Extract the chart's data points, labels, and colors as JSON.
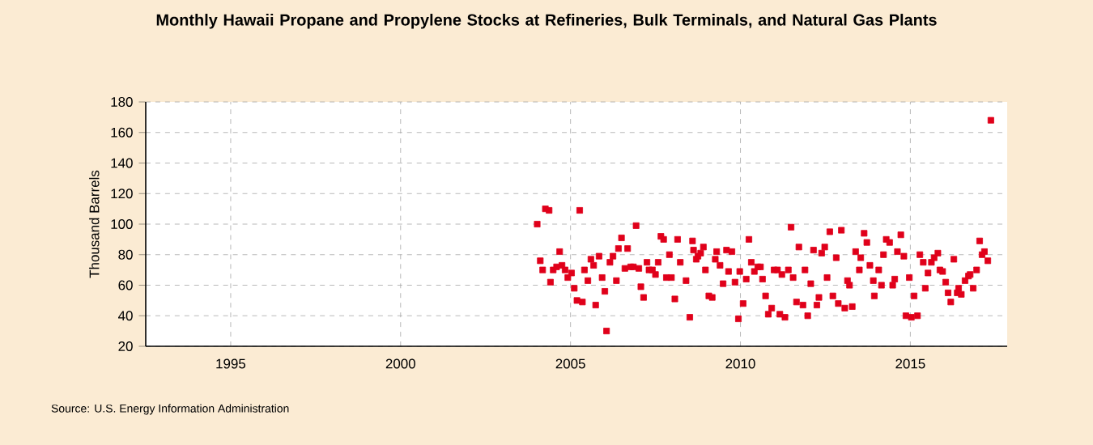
{
  "chart_data": {
    "type": "scatter",
    "title": "Monthly Hawaii Propane and Propylene Stocks at Refineries, Bulk Terminals, and Natural Gas Plants",
    "ylabel": "Thousand Barrels",
    "annotations": [
      "Source: U.S. Energy Information Administration"
    ],
    "x": [
      2004.02,
      2004.11,
      2004.18,
      2004.26,
      2004.37,
      2004.41,
      2004.49,
      2004.59,
      2004.68,
      2004.75,
      2004.84,
      2004.92,
      2005.03,
      2005.11,
      2005.19,
      2005.27,
      2005.35,
      2005.41,
      2005.51,
      2005.6,
      2005.68,
      2005.74,
      2005.84,
      2005.93,
      2006.01,
      2006.06,
      2006.16,
      2006.25,
      2006.35,
      2006.41,
      2006.5,
      2006.6,
      2006.68,
      2006.77,
      2006.85,
      2006.93,
      2007.01,
      2007.07,
      2007.15,
      2007.25,
      2007.31,
      2007.41,
      2007.5,
      2007.58,
      2007.66,
      2007.74,
      2007.82,
      2007.91,
      2007.97,
      2008.07,
      2008.15,
      2008.23,
      2008.4,
      2008.51,
      2008.59,
      2008.62,
      2008.7,
      2008.75,
      2008.83,
      2008.91,
      2008.97,
      2009.07,
      2009.17,
      2009.26,
      2009.3,
      2009.4,
      2009.49,
      2009.59,
      2009.65,
      2009.75,
      2009.84,
      2009.94,
      2009.98,
      2010.08,
      2010.17,
      2010.25,
      2010.32,
      2010.41,
      2010.51,
      2010.59,
      2010.65,
      2010.74,
      2010.82,
      2010.92,
      2010.99,
      2011.09,
      2011.16,
      2011.22,
      2011.31,
      2011.41,
      2011.49,
      2011.55,
      2011.65,
      2011.72,
      2011.84,
      2011.9,
      2011.98,
      2012.07,
      2012.15,
      2012.25,
      2012.31,
      2012.39,
      2012.48,
      2012.55,
      2012.63,
      2012.72,
      2012.82,
      2012.88,
      2012.97,
      2013.07,
      2013.15,
      2013.21,
      2013.29,
      2013.39,
      2013.5,
      2013.54,
      2013.64,
      2013.72,
      2013.81,
      2013.91,
      2013.94,
      2014.07,
      2014.15,
      2014.21,
      2014.29,
      2014.39,
      2014.48,
      2014.54,
      2014.62,
      2014.72,
      2014.81,
      2014.87,
      2014.97,
      2015.03,
      2015.11,
      2015.21,
      2015.28,
      2015.38,
      2015.44,
      2015.52,
      2015.62,
      2015.7,
      2015.81,
      2015.87,
      2015.95,
      2016.04,
      2016.11,
      2016.19,
      2016.28,
      2016.38,
      2016.42,
      2016.5,
      2016.61,
      2016.71,
      2016.76,
      2016.85,
      2016.95,
      2017.04,
      2017.11,
      2017.18,
      2017.28,
      2017.37
    ],
    "values": [
      100,
      76,
      70,
      110,
      109,
      62,
      70,
      72,
      82,
      73,
      70,
      65,
      68,
      58,
      50,
      109,
      49,
      70,
      63,
      77,
      73,
      47,
      79,
      65,
      56,
      30,
      75,
      79,
      63,
      84,
      91,
      71,
      84,
      72,
      72,
      99,
      71,
      59,
      52,
      75,
      70,
      70,
      67,
      75,
      92,
      90,
      65,
      80,
      65,
      51,
      90,
      75,
      63,
      39,
      89,
      83,
      77,
      79,
      81,
      85,
      70,
      53,
      52,
      77,
      82,
      73,
      61,
      83,
      69,
      82,
      62,
      38,
      69,
      48,
      64,
      90,
      75,
      69,
      72,
      72,
      64,
      53,
      41,
      45,
      70,
      70,
      41,
      67,
      39,
      70,
      98,
      65,
      49,
      85,
      47,
      70,
      40,
      61,
      83,
      47,
      52,
      81,
      85,
      65,
      95,
      53,
      78,
      48,
      96,
      45,
      63,
      60,
      46,
      82,
      70,
      78,
      94,
      88,
      73,
      63,
      53,
      70,
      60,
      80,
      90,
      88,
      60,
      64,
      82,
      93,
      79,
      40,
      65,
      39,
      53,
      40,
      80,
      75,
      58,
      68,
      75,
      78,
      81,
      70,
      69,
      62,
      55,
      49,
      77,
      55,
      58,
      54,
      63,
      66,
      67,
      58,
      70,
      89,
      80,
      82,
      76,
      168
    ],
    "color": "#e0001a",
    "marker": "square",
    "xlim": [
      1992.5,
      2017.85
    ],
    "ylim": [
      20,
      180
    ],
    "xticks": [
      1995,
      2000,
      2005,
      2010,
      2015
    ],
    "yticks": [
      20,
      40,
      60,
      80,
      100,
      120,
      140,
      160,
      180
    ],
    "grid": true
  }
}
